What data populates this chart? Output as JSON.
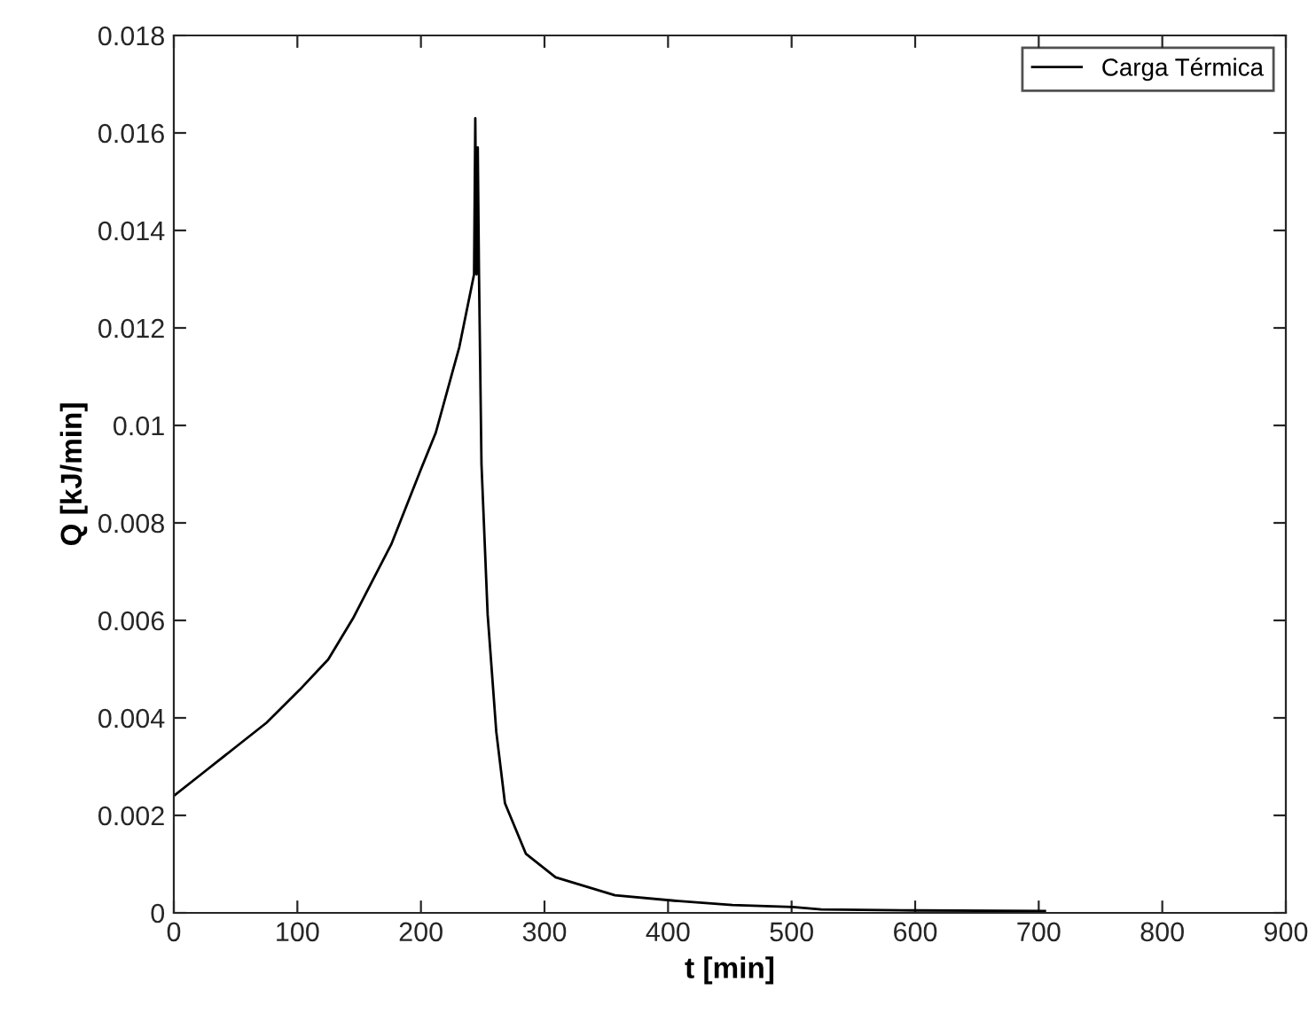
{
  "chart_data": {
    "type": "line",
    "xlabel": "t [min]",
    "ylabel": "Q [kJ/min]",
    "xlim": [
      0,
      900
    ],
    "xticks": [
      0,
      100,
      200,
      300,
      400,
      500,
      600,
      700,
      800,
      900
    ],
    "ylim": [
      0,
      0.018
    ],
    "yticks": [
      0,
      0.002,
      0.004,
      0.006,
      0.008,
      0.01,
      0.012,
      0.014,
      0.016,
      0.018
    ],
    "grid": false,
    "legend": "top right",
    "marker": "none",
    "line_style": "solid",
    "series": [
      {
        "name": "Carga Térmica",
        "color": "#000000",
        "x": [
          0,
          25,
          50,
          75,
          102,
          125,
          145,
          176,
          200,
          212,
          231,
          243,
          244,
          245,
          246,
          247,
          249,
          254,
          261,
          268,
          285,
          309,
          357,
          405,
          452,
          501,
          524,
          600,
          705
        ],
        "values": [
          0.0024,
          0.0029,
          0.0034,
          0.0039,
          0.00458,
          0.0052,
          0.00604,
          0.00756,
          0.0091,
          0.00985,
          0.0116,
          0.0131,
          0.0163,
          0.0131,
          0.0157,
          0.0131,
          0.00921,
          0.00612,
          0.00371,
          0.00225,
          0.00121,
          0.00073,
          0.00036,
          0.00025,
          0.00016,
          0.00012,
          7e-05,
          5e-05,
          4e-05
        ]
      }
    ]
  }
}
